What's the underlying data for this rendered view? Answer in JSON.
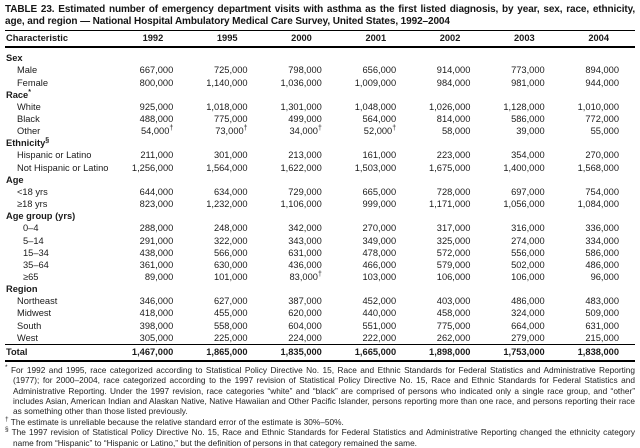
{
  "title": "TABLE 23. Estimated number of emergency department visits with asthma as the first listed diagnosis, by year, sex, race, ethnicity, age, and region — National Hospital Ambulatory Medical Care Survey, United States, 1992–2004",
  "table": {
    "columns": [
      "Characteristic",
      "1992",
      "1995",
      "2000",
      "2001",
      "2002",
      "2003",
      "2004"
    ],
    "rows": [
      {
        "label": "Sex",
        "style": "section",
        "values": []
      },
      {
        "label": "Male",
        "style": "item",
        "values": [
          "667,000",
          "725,000",
          "798,000",
          "656,000",
          "914,000",
          "773,000",
          "894,000"
        ]
      },
      {
        "label": "Female",
        "style": "item",
        "values": [
          "800,000",
          "1,140,000",
          "1,036,000",
          "1,009,000",
          "984,000",
          "981,000",
          "944,000"
        ]
      },
      {
        "label": "Race",
        "marker": "*",
        "style": "section",
        "values": []
      },
      {
        "label": "White",
        "style": "item",
        "values": [
          "925,000",
          "1,018,000",
          "1,301,000",
          "1,048,000",
          "1,026,000",
          "1,128,000",
          "1,010,000"
        ]
      },
      {
        "label": "Black",
        "style": "item",
        "values": [
          "488,000",
          "775,000",
          "499,000",
          "564,000",
          "814,000",
          "586,000",
          "772,000"
        ]
      },
      {
        "label": "Other",
        "style": "item",
        "values": [
          "54,000†",
          "73,000†",
          "34,000†",
          "52,000†",
          "58,000",
          "39,000",
          "55,000"
        ]
      },
      {
        "label": "Ethnicity",
        "marker": "§",
        "style": "section",
        "values": []
      },
      {
        "label": "Hispanic or Latino",
        "style": "item",
        "values": [
          "211,000",
          "301,000",
          "213,000",
          "161,000",
          "223,000",
          "354,000",
          "270,000"
        ]
      },
      {
        "label": "Not Hispanic or Latino",
        "style": "item",
        "values": [
          "1,256,000",
          "1,564,000",
          "1,622,000",
          "1,503,000",
          "1,675,000",
          "1,400,000",
          "1,568,000"
        ]
      },
      {
        "label": "Age",
        "style": "section",
        "values": []
      },
      {
        "label": "<18 yrs",
        "style": "item",
        "values": [
          "644,000",
          "634,000",
          "729,000",
          "665,000",
          "728,000",
          "697,000",
          "754,000"
        ]
      },
      {
        "label": "≥18 yrs",
        "style": "item",
        "values": [
          "823,000",
          "1,232,000",
          "1,106,000",
          "999,000",
          "1,171,000",
          "1,056,000",
          "1,084,000"
        ]
      },
      {
        "label": "Age group (yrs)",
        "style": "section",
        "values": []
      },
      {
        "label": "0–4",
        "style": "item2",
        "values": [
          "288,000",
          "248,000",
          "342,000",
          "270,000",
          "317,000",
          "316,000",
          "336,000"
        ]
      },
      {
        "label": "5–14",
        "style": "item2",
        "values": [
          "291,000",
          "322,000",
          "343,000",
          "349,000",
          "325,000",
          "274,000",
          "334,000"
        ]
      },
      {
        "label": "15–34",
        "style": "item2",
        "values": [
          "438,000",
          "566,000",
          "631,000",
          "478,000",
          "572,000",
          "556,000",
          "586,000"
        ]
      },
      {
        "label": "35–64",
        "style": "item2",
        "values": [
          "361,000",
          "630,000",
          "436,000",
          "466,000",
          "579,000",
          "502,000",
          "486,000"
        ]
      },
      {
        "label": "≥65",
        "style": "item2",
        "values": [
          "89,000",
          "101,000",
          "83,000†",
          "103,000",
          "106,000",
          "106,000",
          "96,000"
        ]
      },
      {
        "label": "Region",
        "style": "section",
        "values": []
      },
      {
        "label": "Northeast",
        "style": "item",
        "values": [
          "346,000",
          "627,000",
          "387,000",
          "452,000",
          "403,000",
          "486,000",
          "483,000"
        ]
      },
      {
        "label": "Midwest",
        "style": "item",
        "values": [
          "418,000",
          "455,000",
          "620,000",
          "440,000",
          "458,000",
          "324,000",
          "509,000"
        ]
      },
      {
        "label": "South",
        "style": "item",
        "values": [
          "398,000",
          "558,000",
          "604,000",
          "551,000",
          "775,000",
          "664,000",
          "631,000"
        ]
      },
      {
        "label": "West",
        "style": "item",
        "values": [
          "305,000",
          "225,000",
          "224,000",
          "222,000",
          "262,000",
          "279,000",
          "215,000"
        ]
      },
      {
        "label": "Total",
        "style": "total",
        "values": [
          "1,467,000",
          "1,865,000",
          "1,835,000",
          "1,665,000",
          "1,898,000",
          "1,753,000",
          "1,838,000"
        ]
      }
    ]
  },
  "footnotes": [
    {
      "marker": "*",
      "text": "For 1992 and 1995, race categorized according to Statistical Policy Directive No. 15, Race and Ethnic Standards for Federal Statistics and Administrative Reporting (1977); for 2000–2004, race categorized according to the 1997 revision of Statistical Policy Directive No. 15, Race and Ethnic Standards for Federal Statistics and Administrative Reporting. Under the 1997 revision, race categories “white” and “black” are comprised of persons who indicated only a single race group, and “other” includes Asian, American Indian and Alaskan Native, Native Hawaiian and Other Pacific Islander, persons reporting more than one race, and persons reporting their race as something other than those listed previously."
    },
    {
      "marker": "†",
      "text": "The estimate is unreliable because the relative standard error of the estimate is 30%–50%."
    },
    {
      "marker": "§",
      "text": "The 1997 revision of Statistical Policy Directive No. 15, Race and Ethnic Standards for Federal Statistics and Administrative Reporting changed the ethnicity category name from “Hispanic” to “Hispanic or Latino,” but the definition of persons in that category remained the same."
    }
  ]
}
